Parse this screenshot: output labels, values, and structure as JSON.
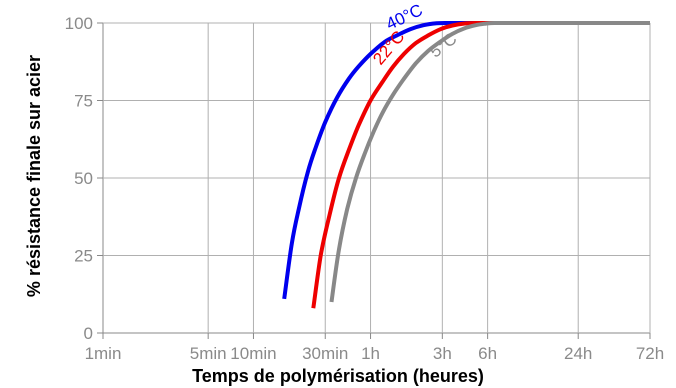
{
  "chart_data": {
    "type": "line",
    "title": "",
    "xlabel": "Temps de polymérisation (heures)",
    "ylabel": "% résistance finale sur acier",
    "x_scale": "log",
    "x_unit": "minutes",
    "x_ticks": [
      {
        "value": 1,
        "label": "1min"
      },
      {
        "value": 5,
        "label": "5min"
      },
      {
        "value": 10,
        "label": "10min"
      },
      {
        "value": 30,
        "label": "30min"
      },
      {
        "value": 60,
        "label": "1h"
      },
      {
        "value": 180,
        "label": "3h"
      },
      {
        "value": 360,
        "label": "6h"
      },
      {
        "value": 1440,
        "label": "24h"
      },
      {
        "value": 4320,
        "label": "72h"
      }
    ],
    "y_ticks": [
      0,
      25,
      50,
      75,
      100
    ],
    "xlim": [
      1,
      4320
    ],
    "ylim": [
      0,
      100
    ],
    "grid": true,
    "series": [
      {
        "name": "40°C",
        "color": "#0000ee",
        "x": [
          16,
          18,
          20,
          23,
          26,
          30,
          36,
          43,
          50,
          60,
          75,
          90,
          110,
          135,
          165,
          200,
          250,
          300,
          400,
          600,
          1000,
          2000,
          4320
        ],
        "y": [
          11,
          29,
          40,
          52,
          60,
          68,
          76,
          82,
          86,
          90,
          94,
          96,
          98,
          99.3,
          99.9,
          100,
          100,
          100,
          100,
          100,
          100,
          100,
          100
        ]
      },
      {
        "name": "22°C",
        "color": "#ee0000",
        "x": [
          25,
          28,
          32,
          37,
          43,
          50,
          60,
          72,
          85,
          100,
          120,
          145,
          175,
          210,
          250,
          300,
          350,
          400,
          600,
          1000,
          2000,
          4320
        ],
        "y": [
          8,
          25,
          38,
          50,
          59,
          67,
          75,
          81,
          86,
          90,
          93.5,
          96,
          98,
          99.2,
          99.8,
          100,
          100,
          100,
          100,
          100,
          100,
          100
        ]
      },
      {
        "name": "5°C",
        "color": "#888888",
        "x": [
          33,
          37,
          42,
          48,
          55,
          63,
          72,
          85,
          100,
          120,
          145,
          175,
          210,
          250,
          300,
          350,
          400,
          600,
          1000,
          2000,
          4320
        ],
        "y": [
          10,
          27,
          40,
          50,
          58,
          65,
          71,
          77,
          82,
          87,
          91,
          94,
          96.5,
          98.2,
          99.3,
          99.8,
          100,
          100,
          100,
          100,
          100
        ]
      }
    ]
  }
}
